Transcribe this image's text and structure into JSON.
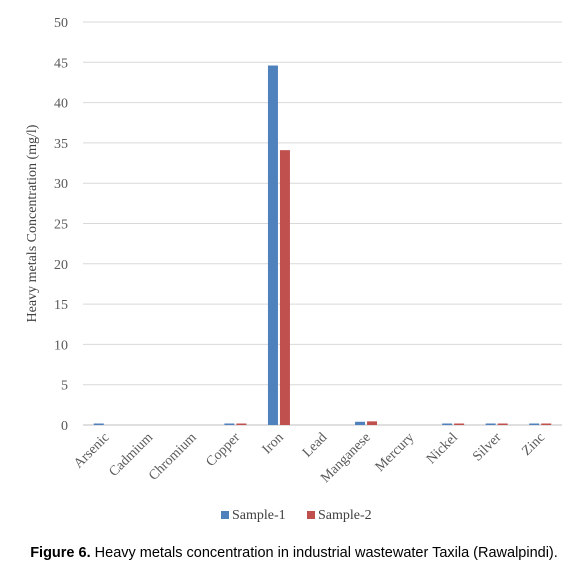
{
  "chart_data": {
    "type": "bar",
    "categories": [
      "Arsenic",
      "Cadmium",
      "Chromium",
      "Copper",
      "Iron",
      "Lead",
      "Manganese",
      "Mercury",
      "Nickel",
      "Silver",
      "Zinc"
    ],
    "series": [
      {
        "name": "Sample-1",
        "color": "#4f81bd",
        "values": [
          0.01,
          0.0,
          0.0,
          0.15,
          44.6,
          0.0,
          0.4,
          0.0,
          0.05,
          0.05,
          0.15
        ]
      },
      {
        "name": "Sample-2",
        "color": "#c0504d",
        "values": [
          0.0,
          0.0,
          0.0,
          0.15,
          34.1,
          0.0,
          0.45,
          0.0,
          0.05,
          0.05,
          0.1
        ]
      }
    ],
    "ylabel": "Heavy metals Concentration (mg/l)",
    "xlabel": "",
    "ylim": [
      0,
      50
    ],
    "yticks": [
      0,
      5,
      10,
      15,
      20,
      25,
      30,
      35,
      40,
      45,
      50
    ],
    "grid": true,
    "legend": "bottom"
  },
  "caption": {
    "label": "Figure 6.",
    "text": " Heavy metals concentration in industrial wastewater Taxila (Rawalpindi)."
  }
}
